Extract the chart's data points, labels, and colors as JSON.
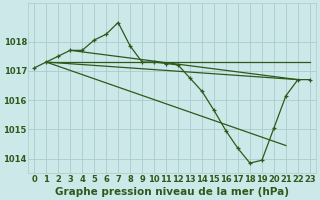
{
  "background_color": "#cce8e8",
  "grid_color": "#aacccc",
  "line_color": "#2d5a1b",
  "xlabel": "Graphe pression niveau de la mer (hPa)",
  "xlabel_fontsize": 7.5,
  "tick_fontsize": 6,
  "xlim": [
    -0.5,
    23.5
  ],
  "ylim": [
    1013.5,
    1019.3
  ],
  "yticks": [
    1014,
    1015,
    1016,
    1017,
    1018
  ],
  "xticks": [
    0,
    1,
    2,
    3,
    4,
    5,
    6,
    7,
    8,
    9,
    10,
    11,
    12,
    13,
    14,
    15,
    16,
    17,
    18,
    19,
    20,
    21,
    22,
    23
  ],
  "series_main": {
    "x": [
      0,
      1,
      2,
      3,
      4,
      5,
      6,
      7,
      8,
      9,
      10,
      11,
      12,
      13,
      14,
      15,
      16,
      17,
      18,
      19,
      20,
      21,
      22,
      23
    ],
    "y": [
      1017.1,
      1017.3,
      1017.5,
      1017.7,
      1017.7,
      1018.05,
      1018.25,
      1018.65,
      1017.85,
      1017.3,
      1017.3,
      1017.25,
      1017.2,
      1016.75,
      1016.3,
      1015.65,
      1014.95,
      1014.35,
      1013.85,
      1013.95,
      1015.05,
      1016.15,
      1016.7,
      1016.7
    ]
  },
  "straight_lines": [
    {
      "x": [
        1,
        23
      ],
      "y": [
        1017.3,
        1017.3
      ]
    },
    {
      "x": [
        1,
        22
      ],
      "y": [
        1017.3,
        1016.7
      ]
    },
    {
      "x": [
        1,
        21
      ],
      "y": [
        1017.3,
        1014.45
      ]
    },
    {
      "x": [
        3,
        22
      ],
      "y": [
        1017.7,
        1016.7
      ]
    }
  ]
}
